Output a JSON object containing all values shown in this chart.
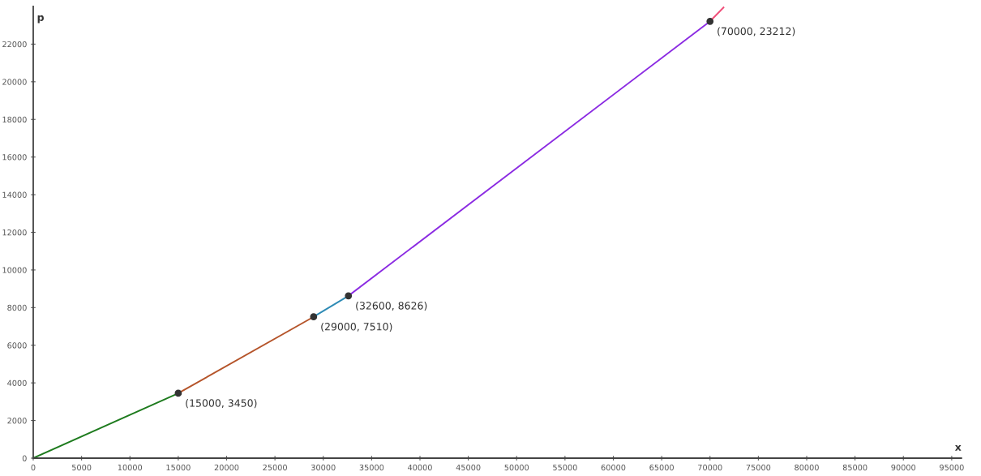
{
  "chart_data": {
    "type": "line",
    "xlabel": "x",
    "ylabel": "p",
    "series": [
      {
        "color": "#1e7b1e",
        "x": [
          0,
          15000
        ],
        "values": [
          0,
          3450
        ]
      },
      {
        "color": "#b5542a",
        "x": [
          15000,
          29000
        ],
        "values": [
          3450,
          7510
        ]
      },
      {
        "color": "#2e8bb5",
        "x": [
          29000,
          32600
        ],
        "values": [
          7510,
          8626
        ]
      },
      {
        "color": "#8b2be2",
        "x": [
          32600,
          70000
        ],
        "values": [
          8626,
          23212
        ]
      },
      {
        "color": "#f0507a",
        "x": [
          70000,
          71400
        ],
        "values": [
          23212,
          23950
        ]
      },
      {
        "type": "scatter",
        "color": "#333333",
        "x": [
          15000,
          29000,
          32600,
          70000
        ],
        "values": [
          3450,
          7510,
          8626,
          23212
        ]
      }
    ],
    "annotations": [
      {
        "text": "(15000, 3450)",
        "x": 15000,
        "y": 3450
      },
      {
        "text": "(29000, 7510)",
        "x": 29000,
        "y": 7510
      },
      {
        "text": "(32600, 8626)",
        "x": 32600,
        "y": 8626
      },
      {
        "text": "(70000, 23212)",
        "x": 70000,
        "y": 23212
      }
    ],
    "xlim": [
      0,
      96000
    ],
    "ylim": [
      0,
      24000
    ],
    "xticks": [
      0,
      5000,
      10000,
      15000,
      20000,
      25000,
      30000,
      35000,
      40000,
      45000,
      50000,
      55000,
      60000,
      65000,
      70000,
      75000,
      80000,
      85000,
      90000,
      95000
    ],
    "yticks": [
      0,
      2000,
      4000,
      6000,
      8000,
      10000,
      12000,
      14000,
      16000,
      18000,
      20000,
      22000
    ],
    "grid": false,
    "marker": "none"
  }
}
